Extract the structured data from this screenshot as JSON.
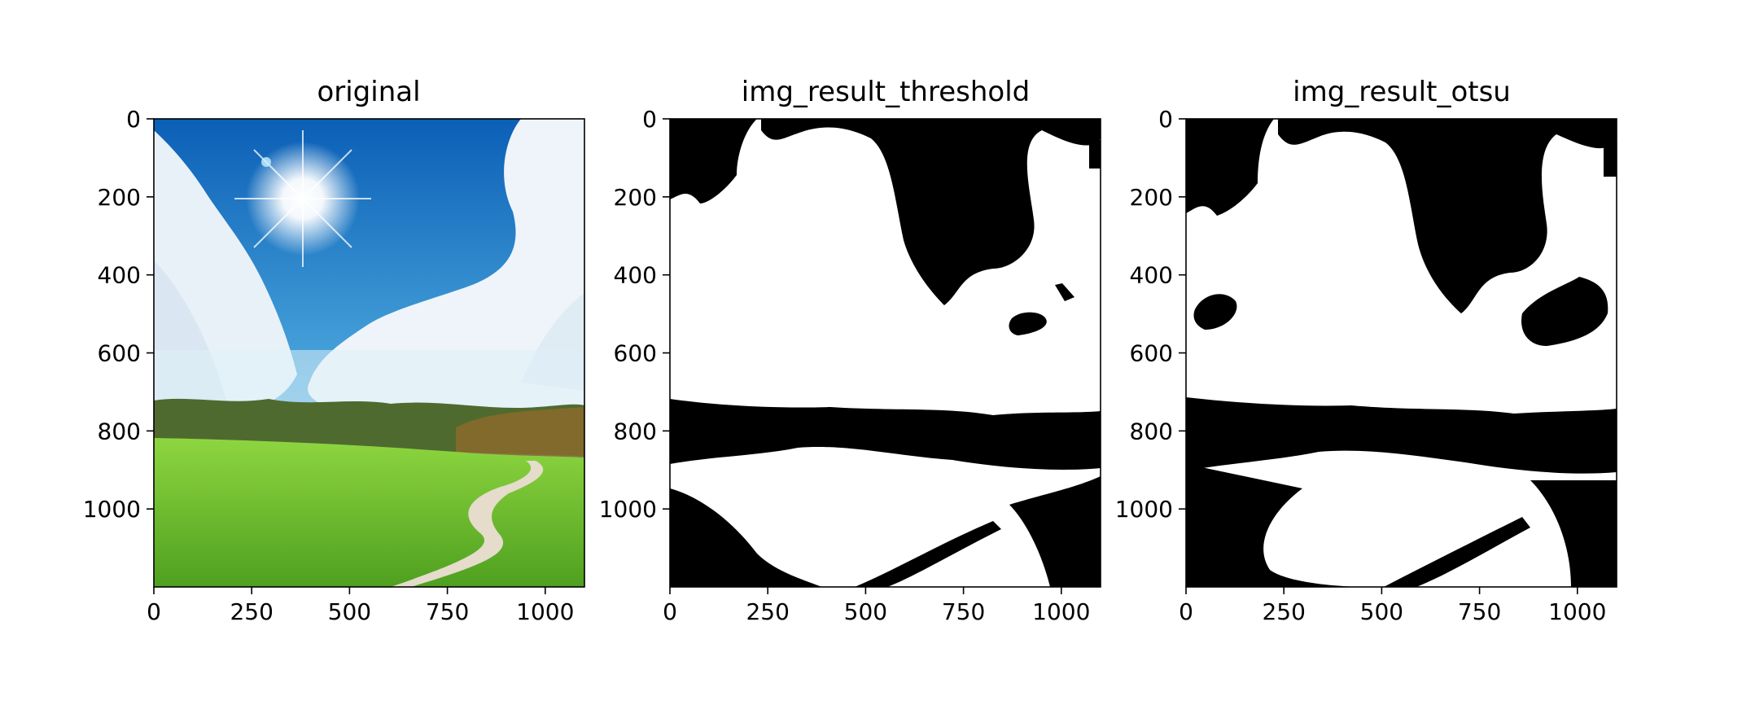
{
  "panels": [
    {
      "title": "original",
      "x_ticks": [
        "0",
        "250",
        "500",
        "750",
        "1000"
      ],
      "y_ticks": [
        "0",
        "200",
        "400",
        "600",
        "800",
        "1000"
      ]
    },
    {
      "title": "img_result_threshold",
      "x_ticks": [
        "0",
        "250",
        "500",
        "750",
        "1000"
      ],
      "y_ticks": [
        "0",
        "200",
        "400",
        "600",
        "800",
        "1000"
      ]
    },
    {
      "title": "img_result_otsu",
      "x_ticks": [
        "0",
        "250",
        "500",
        "750",
        "1000"
      ],
      "y_ticks": [
        "0",
        "200",
        "400",
        "600",
        "800",
        "1000"
      ]
    }
  ],
  "colors": {
    "sky_top": "#0b5fb6",
    "sky_mid": "#4aa6dc",
    "sky_low": "#a8d8ef",
    "cloud": "#f2f6fa",
    "treeline": "#4f6a2f",
    "field_light": "#8ed640",
    "field_dark": "#4fa020",
    "path": "#e5dccb",
    "binary_black": "#000000",
    "binary_white": "#ffffff"
  }
}
